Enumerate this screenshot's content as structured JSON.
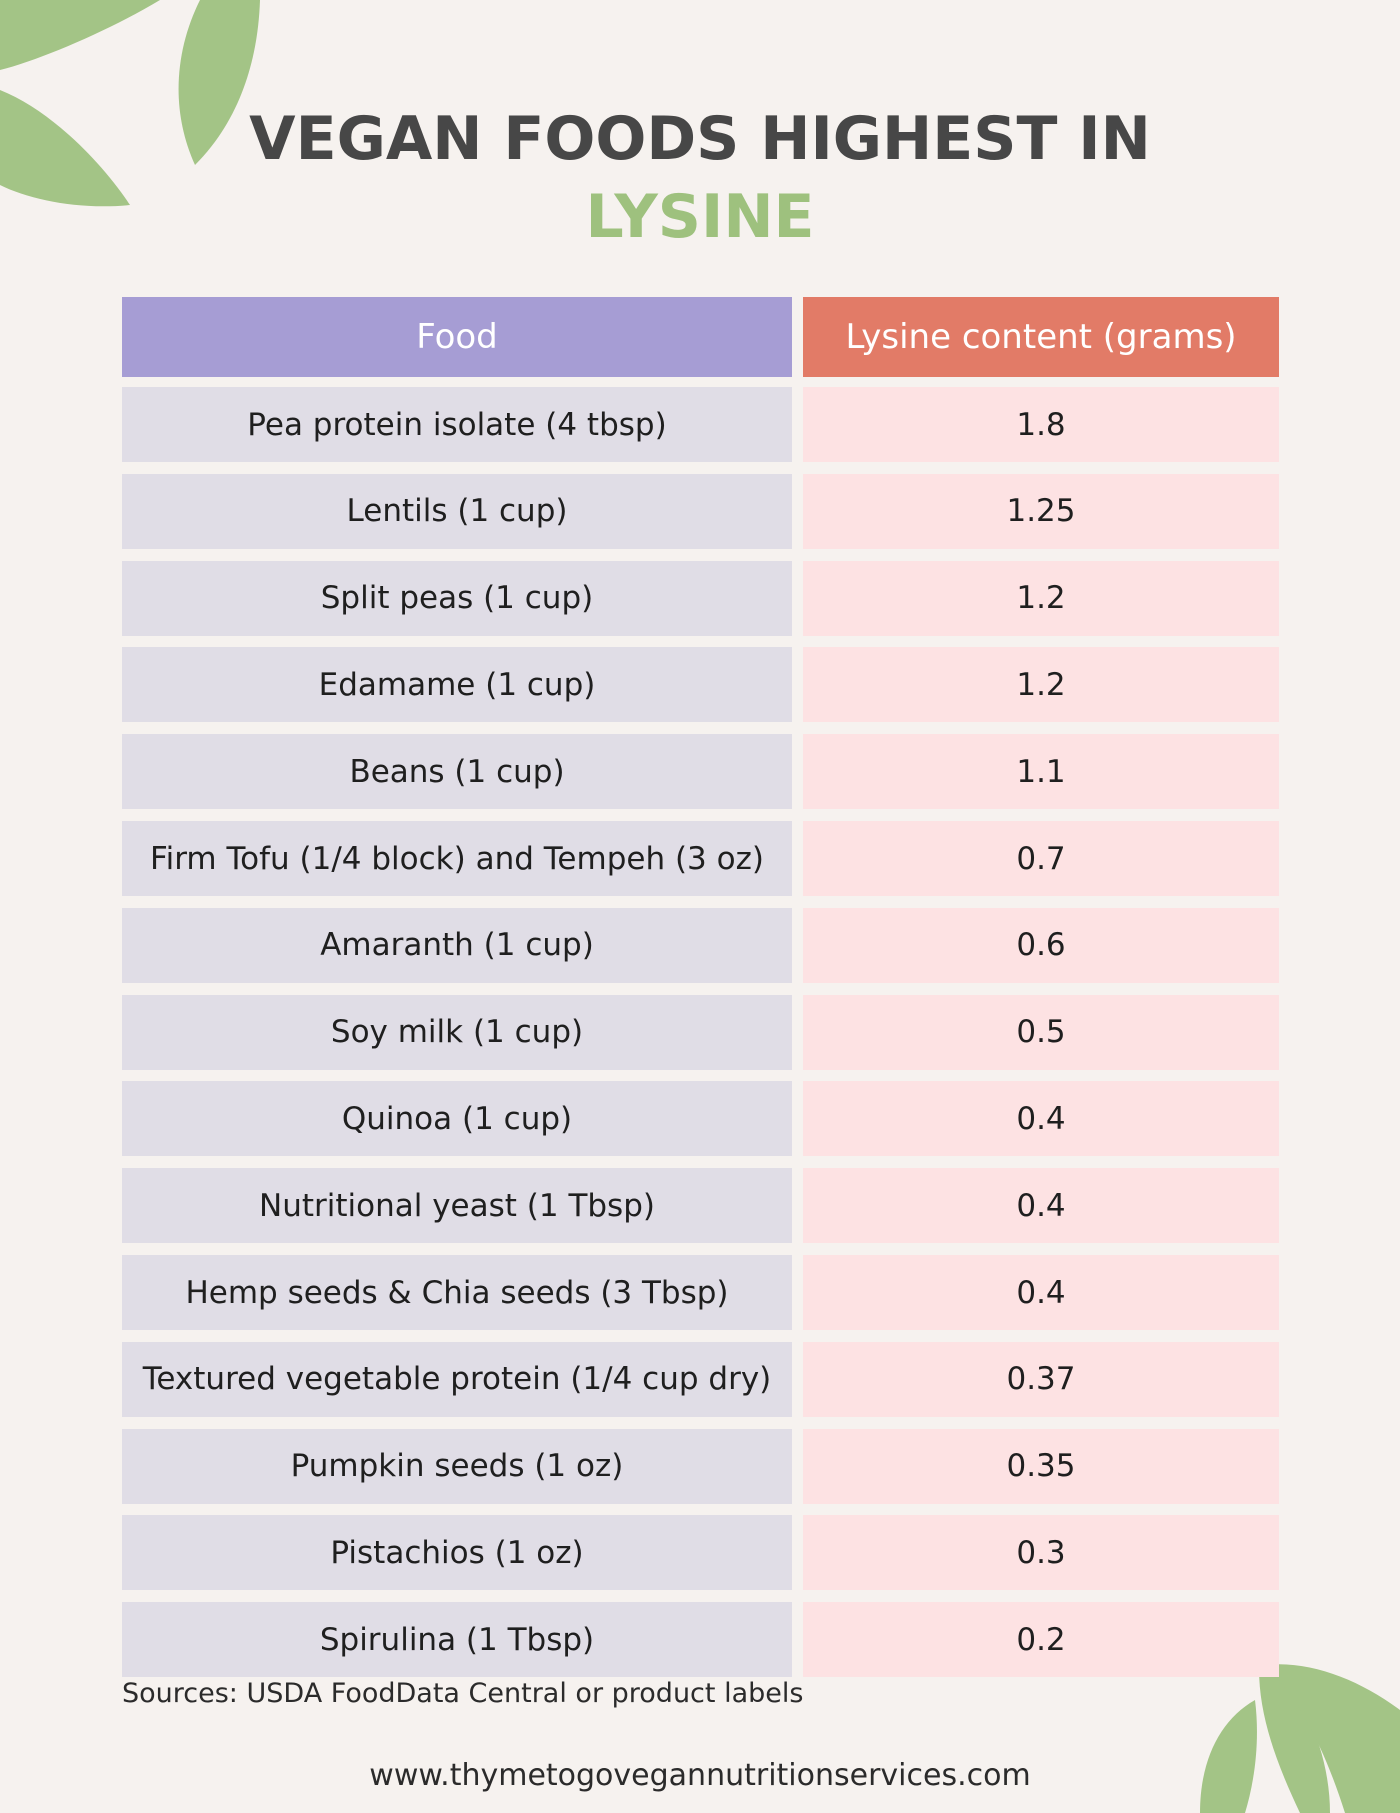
{
  "title": {
    "line1": "VEGAN FOODS HIGHEST IN",
    "line2": "LYSINE"
  },
  "table": {
    "headers": [
      "Food",
      "Lysine content (grams)"
    ],
    "rows": [
      [
        "Pea protein isolate (4 tbsp)",
        "1.8"
      ],
      [
        "Lentils (1 cup)",
        "1.25"
      ],
      [
        "Split peas (1 cup)",
        "1.2"
      ],
      [
        "Edamame (1 cup)",
        "1.2"
      ],
      [
        "Beans (1 cup)",
        "1.1"
      ],
      [
        "Firm Tofu (1/4 block) and Tempeh (3 oz)",
        "0.7"
      ],
      [
        "Amaranth (1 cup)",
        "0.6"
      ],
      [
        "Soy milk (1 cup)",
        "0.5"
      ],
      [
        "Quinoa (1 cup)",
        "0.4"
      ],
      [
        "Nutritional yeast (1 Tbsp)",
        "0.4"
      ],
      [
        "Hemp seeds & Chia seeds (3 Tbsp)",
        "0.4"
      ],
      [
        "Textured vegetable protein (1/4 cup dry)",
        "0.37"
      ],
      [
        "Pumpkin seeds (1 oz)",
        "0.35"
      ],
      [
        "Pistachios (1 oz)",
        "0.3"
      ],
      [
        "Spirulina (1 Tbsp)",
        "0.2"
      ]
    ]
  },
  "footer": {
    "sources": "Sources: USDA FoodData Central or product labels",
    "url": "www.thymetogovegannutritionservices.com"
  },
  "colors": {
    "background": "#f6f2ef",
    "title_dark": "#474747",
    "title_green": "#9ec17e",
    "header_food": "#a69dd4",
    "header_lysine": "#e27b67",
    "row_food": "#e0dde6",
    "row_lysine": "#fde2e3",
    "leaf_green": "#a3c486"
  }
}
